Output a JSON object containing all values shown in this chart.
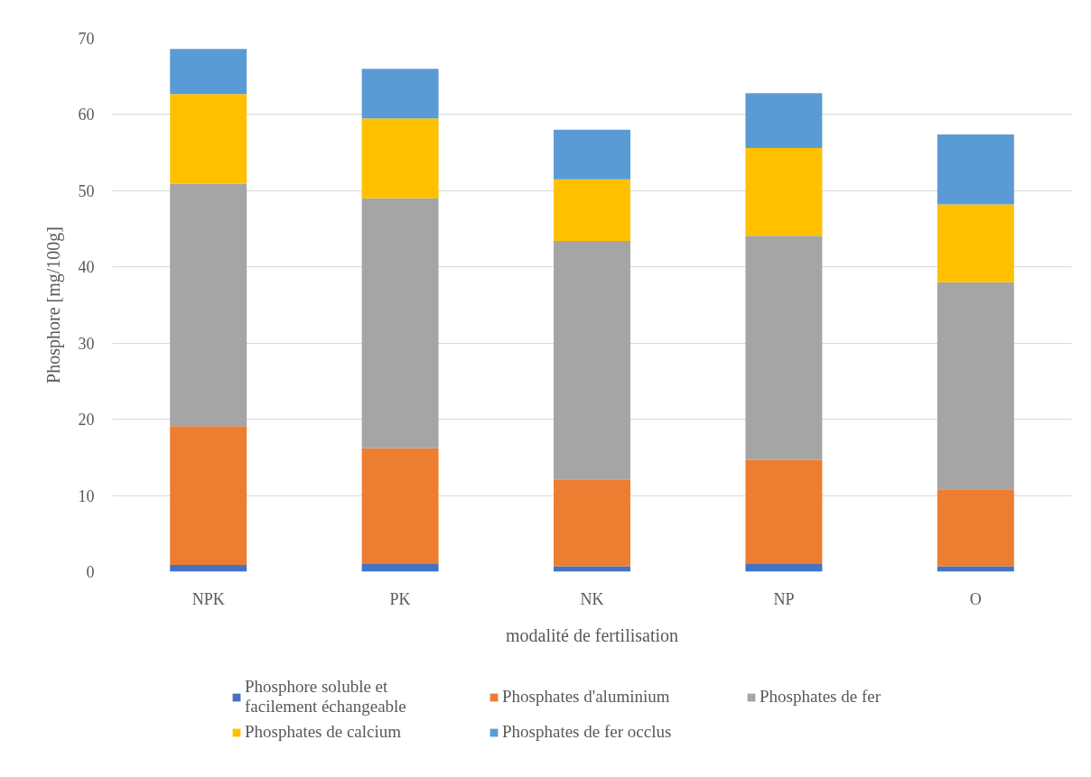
{
  "chart_data": {
    "type": "bar",
    "stacked": true,
    "xlabel": "modalité de fertilisation",
    "ylabel": "Phosphore [mg/100g]",
    "categories": [
      "NPK",
      "PK",
      "NK",
      "NP",
      "O"
    ],
    "ylim": [
      0,
      70
    ],
    "yticks": [
      0,
      10,
      20,
      30,
      40,
      50,
      60,
      70
    ],
    "grid": "y",
    "legend": "bottom",
    "series": [
      {
        "name": "Phosphore soluble et facilement échangeable",
        "color": "#4472c4",
        "values": [
          0.9,
          1.0,
          0.7,
          1.0,
          0.7
        ]
      },
      {
        "name": "Phosphates d'aluminium",
        "color": "#ed7d31",
        "values": [
          18.2,
          15.2,
          11.4,
          13.7,
          10.1
        ]
      },
      {
        "name": "Phosphates de fer",
        "color": "#a5a5a5",
        "values": [
          31.8,
          32.8,
          31.3,
          29.4,
          27.2
        ]
      },
      {
        "name": "Phosphates de calcium",
        "color": "#ffc000",
        "values": [
          11.8,
          10.5,
          8.1,
          11.5,
          10.2
        ]
      },
      {
        "name": "Phosphates de fer occlus",
        "color": "#5b9bd5",
        "values": [
          5.9,
          6.5,
          6.5,
          7.2,
          9.2
        ]
      }
    ]
  }
}
